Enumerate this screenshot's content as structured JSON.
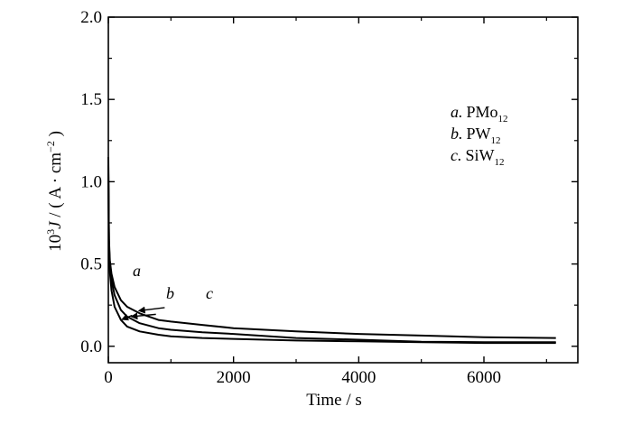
{
  "chart_data": {
    "type": "line",
    "xlabel": "Time / s",
    "ylabel_parts": {
      "prefix": "10",
      "exp": "3",
      "var": "J",
      "unit_open": " / ( A · cm",
      "unit_exp": "−2",
      "unit_close": " )"
    },
    "xlim": [
      0,
      7500
    ],
    "ylim": [
      -0.1,
      2.0
    ],
    "x_ticks": [
      0,
      2000,
      4000,
      6000
    ],
    "x_tick_labels": [
      "0",
      "2000",
      "4000",
      "6000"
    ],
    "y_ticks": [
      0.0,
      0.5,
      1.0,
      1.5,
      2.0
    ],
    "y_tick_labels": [
      "0.0",
      "0.5",
      "1.0",
      "1.5",
      "2.0"
    ],
    "grid": false,
    "legend_position": "top-right",
    "legend": [
      {
        "letter": "a.",
        "base": "PMo",
        "sub": "12"
      },
      {
        "letter": "b.",
        "base": "PW",
        "sub": "12"
      },
      {
        "letter": "c.",
        "base": "SiW",
        "sub": "12"
      }
    ],
    "series": [
      {
        "name": "a",
        "x": [
          0,
          10,
          25,
          50,
          100,
          200,
          300,
          500,
          800,
          1000,
          1500,
          2000,
          3000,
          4000,
          5000,
          6000,
          7150
        ],
        "y": [
          1.15,
          0.6,
          0.45,
          0.34,
          0.24,
          0.16,
          0.12,
          0.09,
          0.07,
          0.06,
          0.05,
          0.045,
          0.035,
          0.03,
          0.025,
          0.02,
          0.02
        ]
      },
      {
        "name": "b",
        "x": [
          0,
          10,
          25,
          50,
          100,
          200,
          300,
          500,
          800,
          1000,
          1500,
          2000,
          3000,
          4000,
          5000,
          6000,
          7150
        ],
        "y": [
          1.1,
          0.62,
          0.5,
          0.4,
          0.31,
          0.22,
          0.18,
          0.14,
          0.11,
          0.1,
          0.085,
          0.075,
          0.05,
          0.04,
          0.028,
          0.025,
          0.025
        ]
      },
      {
        "name": "c",
        "x": [
          0,
          10,
          25,
          50,
          100,
          200,
          300,
          500,
          800,
          1000,
          1500,
          2000,
          3000,
          4000,
          5000,
          6000,
          7150
        ],
        "y": [
          1.05,
          0.65,
          0.52,
          0.44,
          0.36,
          0.28,
          0.24,
          0.2,
          0.16,
          0.15,
          0.13,
          0.11,
          0.09,
          0.075,
          0.065,
          0.055,
          0.05
        ]
      }
    ],
    "annotations": [
      {
        "text": "a",
        "series": "a"
      },
      {
        "text": "b",
        "series": "b"
      },
      {
        "text": "c",
        "series": "c"
      }
    ],
    "colors": {
      "line": "#000000"
    }
  }
}
